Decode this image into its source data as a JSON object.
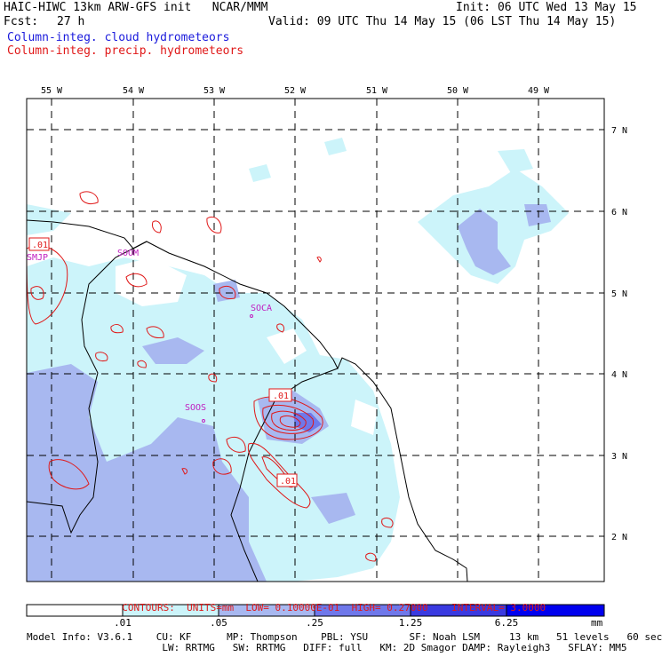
{
  "header": {
    "model_line": "HAIC-HIWC 13km ARW-GFS init   NCAR/MMM",
    "init": "Init: 06 UTC Wed 13 May 15",
    "fcst_label": "Fcst:",
    "fcst_value": "27 h",
    "valid": "Valid: 09 UTC Thu 14 May 15 (06 LST Thu 14 May 15)",
    "field1": "Column-integ. cloud hydrometeors",
    "field2": "Column-integ. precip. hydrometeors"
  },
  "map": {
    "lon_labels": [
      "55 W",
      "54 W",
      "53 W",
      "52 W",
      "51 W",
      "50 W",
      "49 W"
    ],
    "lat_labels": [
      "7 N",
      "6 N",
      "5 N",
      "4 N",
      "3 N",
      "2 N"
    ],
    "stations": [
      "SMJP",
      "SOCA",
      "SOOS",
      "SOOM"
    ],
    "contour_labels": [
      ".01",
      ".01",
      ".01"
    ]
  },
  "contours_line": {
    "contours": "CONTOURS:",
    "units": "UNITS=mm",
    "low": "LOW= 0.10000E-01",
    "high": "HIGH= 0.27000",
    "interval": "INTERVAL= 3.0000"
  },
  "legend": {
    "labels": [
      ".01",
      ".05",
      ".25",
      "1.25",
      "6.25"
    ],
    "unit": "mm",
    "colors": [
      "#ffffff",
      "#ccf4fa",
      "#a8b8f0",
      "#6f78ea",
      "#3a3ae0",
      "#0000ee"
    ]
  },
  "footer": {
    "line1": "Model Info: V3.6.1    CU: KF      MP: Thompson    PBL: YSU       SF: Noah LSM     13 km   51 levels   60 sec",
    "line2": "                       LW: RRTMG   SW: RRTMG   DIFF: full   KM: 2D Smagor DAMP: Rayleigh3   SFLAY: MM5"
  }
}
